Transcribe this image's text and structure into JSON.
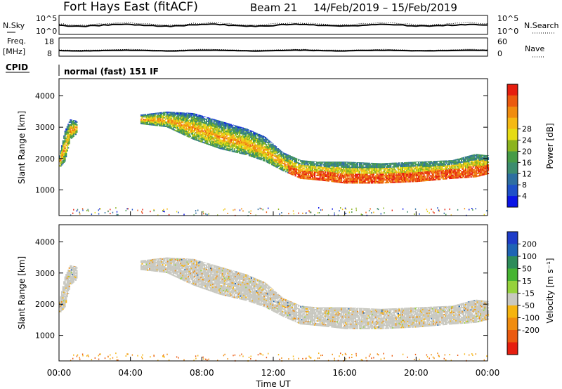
{
  "header": {
    "radar": "Fort Hays East (fitACF)",
    "beam": "Beam 21",
    "dates": "14/Feb/2019 – 15/Feb/2019"
  },
  "top_panels": {
    "nsky_label": "N.Sky",
    "nsearch_label": "N.Search",
    "nsky_ticks": [
      "10^5",
      "10^0"
    ],
    "nsearch_ticks": [
      "10^5",
      "10^0"
    ],
    "freq_label_1": "Freq.",
    "freq_label_2": "[MHz]",
    "freq_ticks": [
      "18",
      "8"
    ],
    "nave_label": "Nave",
    "nave_ticks": [
      "60",
      "0"
    ],
    "cpid_label": "CPID",
    "cpid_text": "normal (fast) 151 IF"
  },
  "chart_data": [
    {
      "type": "heatmap",
      "name": "Power",
      "ylabel": "Slant Range [km]",
      "xlabel": "Time UT",
      "xlim_hours": [
        0,
        24
      ],
      "ylim": [
        180,
        4550
      ],
      "yticks": [
        "1000",
        "2000",
        "3000",
        "4000"
      ],
      "colorbar_label": "Power [dB]",
      "colorbar_ticks": [
        "4",
        "8",
        "12",
        "16",
        "20",
        "24",
        "28"
      ],
      "colors": [
        "#0a14e6",
        "#1e50c8",
        "#2d6ea0",
        "#3c8c6e",
        "#469b46",
        "#8cb41e",
        "#e6dc14",
        "#f5b914",
        "#f08c0f",
        "#eb5a0f",
        "#e61e0f"
      ],
      "echo_band": {
        "time_hours": [
          0,
          0.3,
          0.6,
          1.0,
          1.5,
          3.7,
          4.5,
          6.0,
          7.5,
          9.0,
          10.5,
          11.5,
          12.5,
          13.5,
          14.5,
          16.0,
          18.0,
          20.0,
          22.0,
          23.3,
          24.0
        ],
        "top_km": [
          2100,
          2900,
          3250,
          3200,
          null,
          null,
          3400,
          3500,
          3450,
          3200,
          2950,
          2700,
          2200,
          1950,
          1900,
          1900,
          1850,
          1900,
          1950,
          2150,
          2100
        ],
        "bottom_km": [
          1700,
          1900,
          2600,
          2800,
          null,
          null,
          3100,
          3000,
          2600,
          2300,
          2100,
          1900,
          1600,
          1350,
          1300,
          1200,
          1200,
          1250,
          1350,
          1400,
          1500
        ]
      }
    },
    {
      "type": "heatmap",
      "name": "Velocity",
      "ylabel": "Slant Range [km]",
      "xlabel": "Time UT",
      "xlim_hours": [
        0,
        24
      ],
      "ylim": [
        180,
        4550
      ],
      "yticks": [
        "1000",
        "2000",
        "3000",
        "4000"
      ],
      "xticks": [
        "00:00",
        "04:00",
        "08:00",
        "12:00",
        "16:00",
        "20:00",
        "00:00"
      ],
      "colorbar_label": "Velocity [m s⁻¹]",
      "colorbar_ticks": [
        "200",
        "100",
        "50",
        "15",
        "-15",
        "-50",
        "-100",
        "-200"
      ],
      "colors": [
        "#1e3cc8",
        "#1e64b4",
        "#2d8c5a",
        "#46b432",
        "#96d23c",
        "#c8c8c0",
        "#f5b40f",
        "#f08c0f",
        "#eb5a0f",
        "#e61e0f"
      ]
    }
  ]
}
